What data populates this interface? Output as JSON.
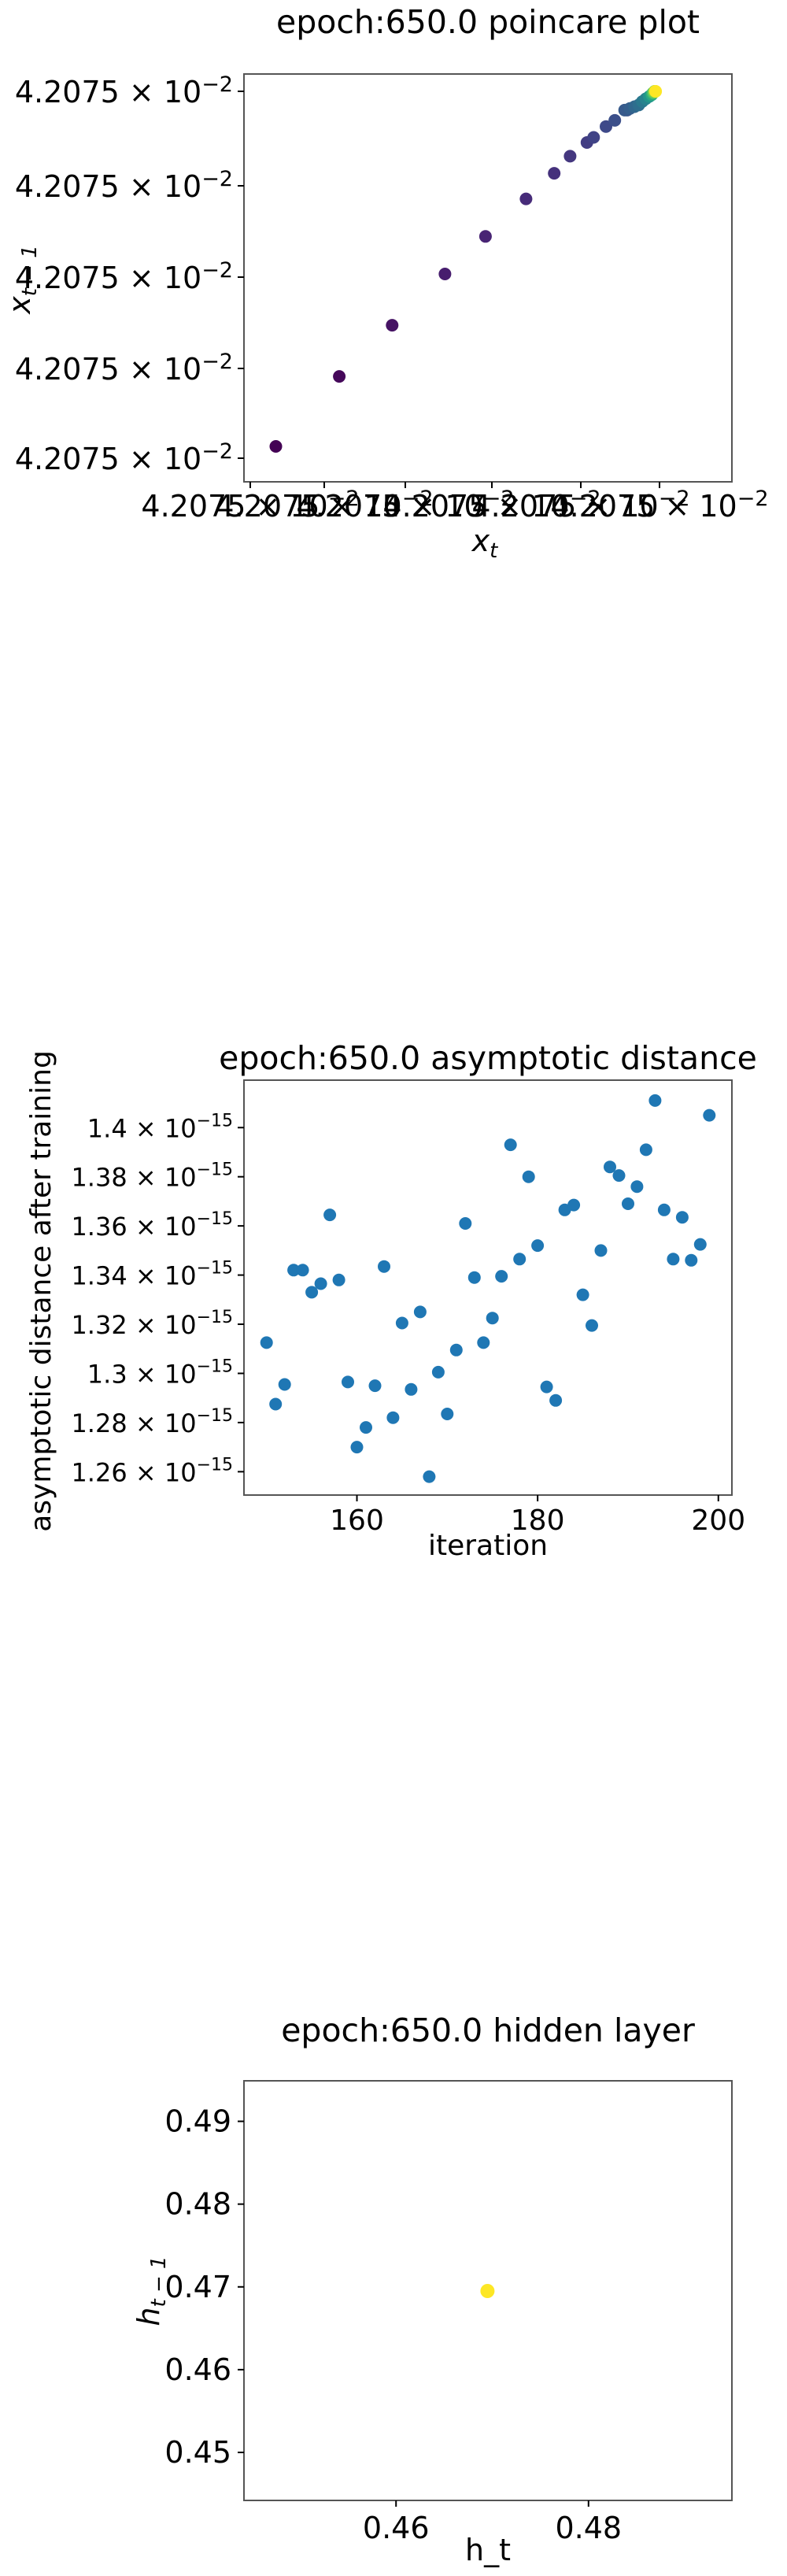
{
  "chart_data": [
    {
      "type": "scatter",
      "title": "epoch:650.0 poincare plot",
      "xlabel": "x_t",
      "ylabel": "x_{t-1}",
      "colormap": "viridis",
      "xticks": [
        "4.2075 × 10^-2",
        "4.2075 × 10^-2",
        "4.2075 × 10^-2",
        "4.2075 × 10^-2",
        "4.2075 × 10^-2",
        "4.2075 × 10^-2"
      ],
      "yticks": [
        "4.2075 × 10^-2",
        "4.2075 × 10^-2",
        "4.2075 × 10^-2",
        "4.2075 × 10^-2",
        "4.2075 × 10^-2"
      ],
      "tick_mantissa": "4.2075",
      "tick_exponent": "−2",
      "note": "",
      "points": [
        {
          "x": 0.0,
          "y": 0.0,
          "c": 0.0
        },
        {
          "x": 0.18,
          "y": 0.205,
          "c": 0.02
        },
        {
          "x": 0.33,
          "y": 0.355,
          "c": 0.05
        },
        {
          "x": 0.48,
          "y": 0.505,
          "c": 0.08
        },
        {
          "x": 0.595,
          "y": 0.615,
          "c": 0.1
        },
        {
          "x": 0.71,
          "y": 0.725,
          "c": 0.12
        },
        {
          "x": 0.79,
          "y": 0.8,
          "c": 0.14
        },
        {
          "x": 0.835,
          "y": 0.85,
          "c": 0.16
        },
        {
          "x": 0.883,
          "y": 0.89,
          "c": 0.18
        },
        {
          "x": 0.902,
          "y": 0.905,
          "c": 0.2
        },
        {
          "x": 0.937,
          "y": 0.937,
          "c": 0.22
        },
        {
          "x": 0.962,
          "y": 0.955,
          "c": 0.24
        },
        {
          "x": 0.997,
          "y": 0.985,
          "c": 0.26
        },
        {
          "x": 0.99,
          "y": 0.985,
          "c": 0.28
        },
        {
          "x": 1.005,
          "y": 0.99,
          "c": 0.3
        },
        {
          "x": 1.018,
          "y": 0.995,
          "c": 0.33
        },
        {
          "x": 1.03,
          "y": 1.0,
          "c": 0.36
        },
        {
          "x": 1.04,
          "y": 1.01,
          "c": 0.4
        },
        {
          "x": 1.05,
          "y": 1.018,
          "c": 0.45
        },
        {
          "x": 1.06,
          "y": 1.025,
          "c": 0.52
        },
        {
          "x": 1.067,
          "y": 1.03,
          "c": 0.6
        },
        {
          "x": 1.07,
          "y": 1.035,
          "c": 0.68
        },
        {
          "x": 1.073,
          "y": 1.037,
          "c": 0.76
        },
        {
          "x": 1.075,
          "y": 1.04,
          "c": 0.84
        },
        {
          "x": 1.077,
          "y": 1.04,
          "c": 0.92
        },
        {
          "x": 1.078,
          "y": 1.04,
          "c": 1.0
        }
      ]
    },
    {
      "type": "scatter",
      "title": "epoch:650.0 asymptotic distance",
      "xlabel": "iteration",
      "ylabel": "asymptotic distance after training",
      "xlim": [
        147.5,
        201.5
      ],
      "ylim": [
        1.2505,
        1.4193
      ],
      "xticks": [
        160,
        180,
        200
      ],
      "yticks": [
        1.26,
        1.28,
        1.3,
        1.32,
        1.34,
        1.36,
        1.38,
        1.4
      ],
      "ytick_labels": [
        "1.26",
        "1.28",
        "1.3",
        "1.32",
        "1.34",
        "1.36",
        "1.38",
        "1.4"
      ],
      "ytick_exponent": "−15",
      "color": "#1f77b4",
      "x": [
        150,
        151,
        152,
        153,
        154,
        155,
        156,
        157,
        158,
        159,
        160,
        161,
        162,
        163,
        164,
        165,
        166,
        167,
        168,
        169,
        170,
        171,
        172,
        173,
        174,
        175,
        176,
        177,
        178,
        179,
        180,
        181,
        182,
        183,
        184,
        185,
        186,
        187,
        188,
        189,
        190,
        191,
        192,
        193,
        194,
        195,
        196,
        197,
        198,
        199
      ],
      "y": [
        1.3125,
        1.2875,
        1.2955,
        1.342,
        1.342,
        1.333,
        1.3365,
        1.3645,
        1.338,
        1.2965,
        1.27,
        1.278,
        1.295,
        1.3435,
        1.282,
        1.3205,
        1.2935,
        1.325,
        1.258,
        1.3005,
        1.2835,
        1.3095,
        1.361,
        1.339,
        1.3125,
        1.3225,
        1.3395,
        1.393,
        1.3465,
        1.38,
        1.352,
        1.2945,
        1.289,
        1.3665,
        1.3685,
        1.332,
        1.3195,
        1.35,
        1.384,
        1.3805,
        1.369,
        1.376,
        1.391,
        1.411,
        1.3665,
        1.3465,
        1.3635,
        1.346,
        1.3525,
        1.405
      ]
    },
    {
      "type": "scatter",
      "title": "epoch:650.0 hidden layer",
      "xlabel": "h_t",
      "ylabel": "h_{t-1}",
      "xlim": [
        0.4442,
        0.4949
      ],
      "ylim": [
        0.4442,
        0.4949
      ],
      "xticks": [
        0.46,
        0.48
      ],
      "xtick_labels": [
        "0.46",
        "0.48"
      ],
      "yticks": [
        0.45,
        0.46,
        0.47,
        0.48,
        0.49
      ],
      "ytick_labels": [
        "0.45",
        "0.46",
        "0.47",
        "0.48",
        "0.49"
      ],
      "color": "#fde725",
      "x": [
        0.4695
      ],
      "y": [
        0.4695
      ]
    }
  ]
}
